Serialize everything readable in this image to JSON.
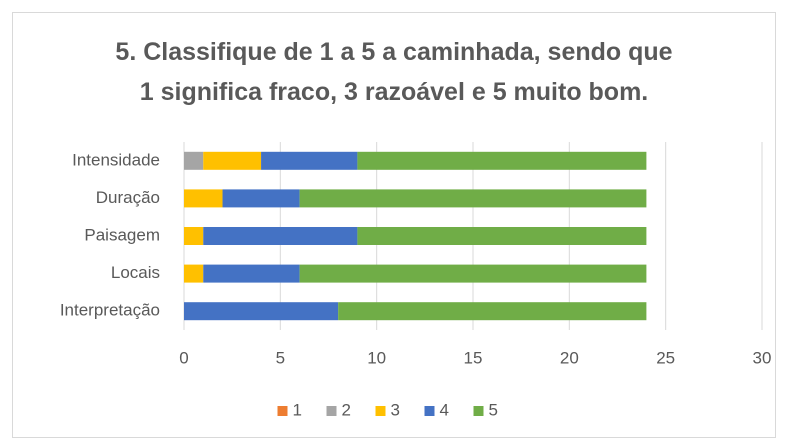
{
  "chart_data": {
    "type": "bar",
    "orientation": "horizontal",
    "stacked": true,
    "title": "5. Classifique de 1 a 5 a caminhada, sendo que\n1 significa fraco, 3 razoável e 5 muito bom.",
    "categories": [
      "Intensidade",
      "Duração",
      "Paisagem",
      "Locais",
      "Interpretação"
    ],
    "series": [
      {
        "name": "1",
        "color": "#ed7d31",
        "values": [
          0,
          0,
          0,
          0,
          0
        ]
      },
      {
        "name": "2",
        "color": "#a5a5a5",
        "values": [
          1,
          0,
          0,
          0,
          0
        ]
      },
      {
        "name": "3",
        "color": "#ffc000",
        "values": [
          3,
          2,
          1,
          1,
          0
        ]
      },
      {
        "name": "4",
        "color": "#4472c4",
        "values": [
          5,
          4,
          8,
          5,
          8
        ]
      },
      {
        "name": "5",
        "color": "#70ad47",
        "values": [
          15,
          18,
          15,
          18,
          16
        ]
      }
    ],
    "xlim": [
      0,
      30
    ],
    "xticks": [
      0,
      5,
      10,
      15,
      20,
      25,
      30
    ],
    "grid": true,
    "legend": "bottom"
  }
}
